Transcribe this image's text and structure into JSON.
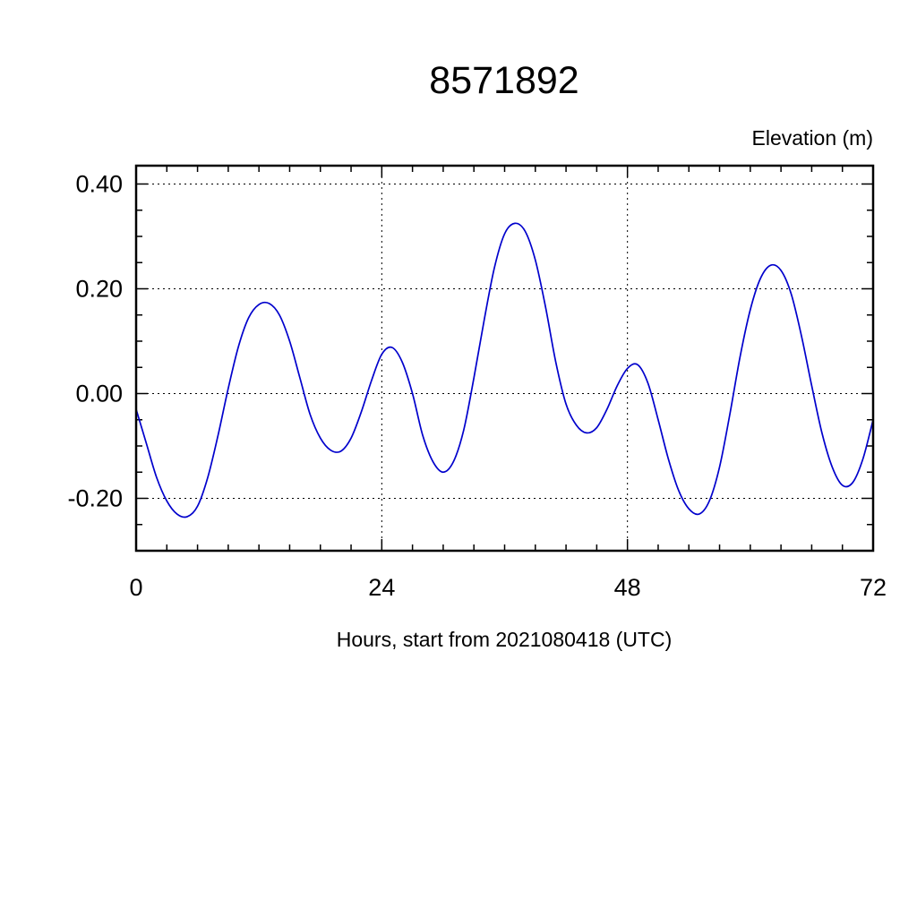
{
  "title": "8571892",
  "chart_data": {
    "type": "line",
    "title": "8571892",
    "xlabel": "Hours, start from 2021080418 (UTC)",
    "ylabel": "Elevation (m)",
    "xlim": [
      0,
      72
    ],
    "ylim": [
      -0.3,
      0.435
    ],
    "x_major_ticks": [
      0,
      24,
      48,
      72
    ],
    "x_major_tick_labels": [
      "0",
      "24",
      "48",
      "72"
    ],
    "x_minor_step": 3,
    "y_major_ticks": [
      -0.2,
      0.0,
      0.2,
      0.4
    ],
    "y_major_tick_labels": [
      "-0.20",
      "0.00",
      "0.20",
      "0.40"
    ],
    "y_minor_step": 0.05,
    "x_gridlines": [
      24,
      48
    ],
    "y_gridlines": [
      -0.2,
      0.0,
      0.2,
      0.4
    ],
    "grid_style": "dashed",
    "legend": "none",
    "line_color": "#0000cc",
    "x": [
      0,
      1,
      2,
      3,
      4,
      5,
      6,
      7,
      8,
      9,
      10,
      11,
      12,
      13,
      14,
      15,
      16,
      17,
      18,
      19,
      20,
      21,
      22,
      23,
      24,
      25,
      26,
      27,
      28,
      29,
      30,
      31,
      32,
      33,
      34,
      35,
      36,
      37,
      38,
      39,
      40,
      41,
      42,
      43,
      44,
      45,
      46,
      47,
      48,
      49,
      50,
      51,
      52,
      53,
      54,
      55,
      56,
      57,
      58,
      59,
      60,
      61,
      62,
      63,
      64,
      65,
      66,
      67,
      68,
      69,
      70,
      71,
      72
    ],
    "y": [
      -0.03,
      -0.095,
      -0.16,
      -0.205,
      -0.23,
      -0.235,
      -0.215,
      -0.16,
      -0.08,
      0.01,
      0.09,
      0.145,
      0.17,
      0.172,
      0.15,
      0.1,
      0.03,
      -0.04,
      -0.085,
      -0.108,
      -0.11,
      -0.085,
      -0.035,
      0.025,
      0.075,
      0.088,
      0.06,
      0.0,
      -0.08,
      -0.13,
      -0.15,
      -0.13,
      -0.07,
      0.03,
      0.14,
      0.24,
      0.305,
      0.325,
      0.31,
      0.255,
      0.165,
      0.06,
      -0.02,
      -0.06,
      -0.075,
      -0.065,
      -0.03,
      0.015,
      0.048,
      0.055,
      0.02,
      -0.05,
      -0.125,
      -0.185,
      -0.22,
      -0.23,
      -0.205,
      -0.14,
      -0.04,
      0.07,
      0.16,
      0.22,
      0.245,
      0.235,
      0.19,
      0.11,
      0.015,
      -0.075,
      -0.14,
      -0.175,
      -0.17,
      -0.125,
      -0.05
    ]
  }
}
